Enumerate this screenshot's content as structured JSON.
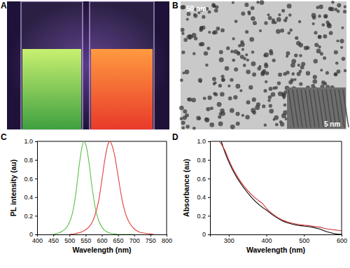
{
  "images": [
    {
      "label": "A"
    },
    {
      "label": "B",
      "annotations": [
        "50 nm",
        "5 nm"
      ]
    }
  ],
  "chart_data": [
    {
      "type": "line",
      "title": "C",
      "x_label": "Wavelength (nm)",
      "y_label": "PL intensity (au)",
      "xlim": [
        400,
        800
      ],
      "xticks": [
        400,
        450,
        500,
        550,
        600,
        650,
        700,
        750,
        800
      ],
      "ylim": [
        0,
        1.0
      ],
      "yticks": [
        0,
        0.2,
        0.4,
        0.6,
        0.8,
        {
          "value": 1,
          "label": "1.0"
        }
      ],
      "series": [
        {
          "color": "#5cbf4a",
          "x": [
            450,
            460,
            470,
            480,
            490,
            500,
            510,
            520,
            530,
            540,
            545,
            550,
            560,
            570,
            580,
            590,
            600,
            610,
            620,
            630,
            640,
            650,
            700
          ],
          "values": [
            0,
            0.01,
            0.02,
            0.04,
            0.07,
            0.13,
            0.24,
            0.45,
            0.74,
            0.96,
            1.0,
            0.97,
            0.78,
            0.5,
            0.28,
            0.15,
            0.08,
            0.04,
            0.02,
            0.01,
            0.005,
            0,
            0
          ]
        },
        {
          "color": "#e0403a",
          "x": [
            500,
            520,
            540,
            560,
            570,
            580,
            590,
            600,
            610,
            620,
            625,
            630,
            640,
            650,
            660,
            670,
            680,
            690,
            700,
            710,
            720,
            740,
            760
          ],
          "values": [
            0,
            0.01,
            0.03,
            0.08,
            0.13,
            0.22,
            0.36,
            0.58,
            0.82,
            0.98,
            1.0,
            0.97,
            0.84,
            0.63,
            0.42,
            0.26,
            0.16,
            0.1,
            0.06,
            0.035,
            0.02,
            0.01,
            0
          ]
        }
      ]
    },
    {
      "type": "line",
      "title": "D",
      "x_label": "Wavelength (nm)",
      "y_label": "Absorbance (au)",
      "xlim": [
        250,
        600
      ],
      "xticks": [
        300,
        400,
        500,
        600
      ],
      "ylim": [
        0,
        1.0
      ],
      "yticks": [
        0,
        0.2,
        0.4,
        0.6,
        0.8,
        {
          "value": 1,
          "label": "1.0"
        }
      ],
      "series": [
        {
          "color": "#000000",
          "x": [
            280,
            290,
            300,
            320,
            340,
            360,
            380,
            400,
            420,
            440,
            460,
            480,
            500,
            520,
            540,
            560,
            580,
            600
          ],
          "values": [
            1.0,
            0.88,
            0.78,
            0.62,
            0.5,
            0.4,
            0.32,
            0.26,
            0.2,
            0.15,
            0.12,
            0.1,
            0.09,
            0.08,
            0.06,
            0.03,
            0.01,
            0
          ]
        },
        {
          "color": "#d03030",
          "x": [
            275,
            290,
            300,
            320,
            340,
            360,
            380,
            390,
            400,
            420,
            440,
            460,
            480,
            500,
            520,
            540,
            560,
            580,
            600
          ],
          "values": [
            1.0,
            0.9,
            0.8,
            0.64,
            0.52,
            0.43,
            0.36,
            0.33,
            0.28,
            0.21,
            0.16,
            0.13,
            0.11,
            0.1,
            0.09,
            0.08,
            0.06,
            0.05,
            0.04
          ]
        }
      ]
    }
  ]
}
